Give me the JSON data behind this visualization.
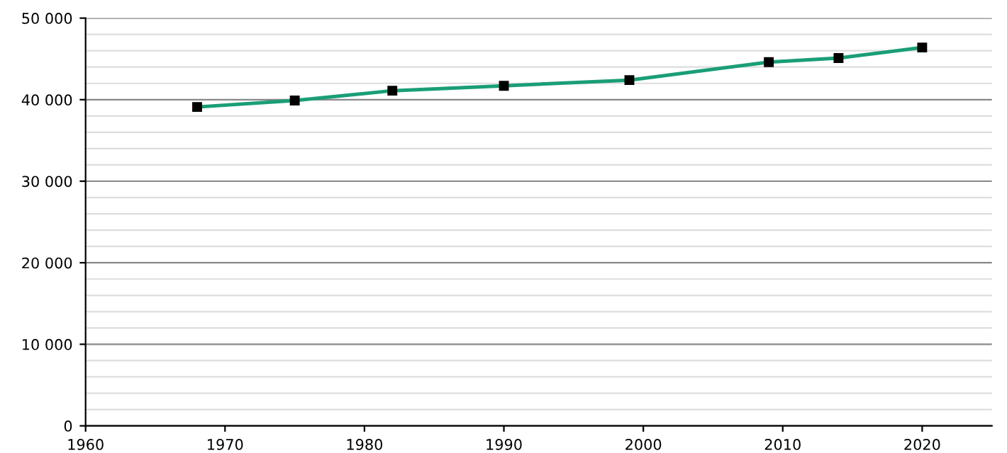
{
  "chart_data": {
    "type": "line",
    "x": [
      1968,
      1975,
      1982,
      1990,
      1999,
      2009,
      2014,
      2020
    ],
    "series": [
      {
        "color": "#1a9e77",
        "values": [
          39100,
          39900,
          41100,
          41700,
          42400,
          44600,
          45100,
          46400
        ]
      }
    ],
    "xlim": [
      1960,
      2025
    ],
    "xticks": [
      1960,
      1970,
      1980,
      1990,
      2000,
      2010,
      2020
    ],
    "ylim": [
      0,
      50000
    ],
    "yticks": [
      {
        "value": 0,
        "label": "0"
      },
      {
        "value": 2000,
        "label": null
      },
      {
        "value": 4000,
        "label": null
      },
      {
        "value": 6000,
        "label": null
      },
      {
        "value": 8000,
        "label": null
      },
      {
        "value": 10000,
        "label": "10 000"
      },
      {
        "value": 12000,
        "label": null
      },
      {
        "value": 14000,
        "label": null
      },
      {
        "value": 16000,
        "label": null
      },
      {
        "value": 18000,
        "label": null
      },
      {
        "value": 20000,
        "label": "20 000"
      },
      {
        "value": 22000,
        "label": null
      },
      {
        "value": 24000,
        "label": null
      },
      {
        "value": 26000,
        "label": null
      },
      {
        "value": 28000,
        "label": null
      },
      {
        "value": 30000,
        "label": "30 000"
      },
      {
        "value": 32000,
        "label": null
      },
      {
        "value": 34000,
        "label": null
      },
      {
        "value": 36000,
        "label": null
      },
      {
        "value": 38000,
        "label": null
      },
      {
        "value": 40000,
        "label": "40 000"
      },
      {
        "value": 42000,
        "label": null
      },
      {
        "value": 44000,
        "label": null
      },
      {
        "value": 46000,
        "label": null
      },
      {
        "value": 48000,
        "label": null
      },
      {
        "value": 50000,
        "label": "50 000"
      }
    ],
    "grid": "y",
    "marker": "square",
    "line_style": "solid"
  }
}
